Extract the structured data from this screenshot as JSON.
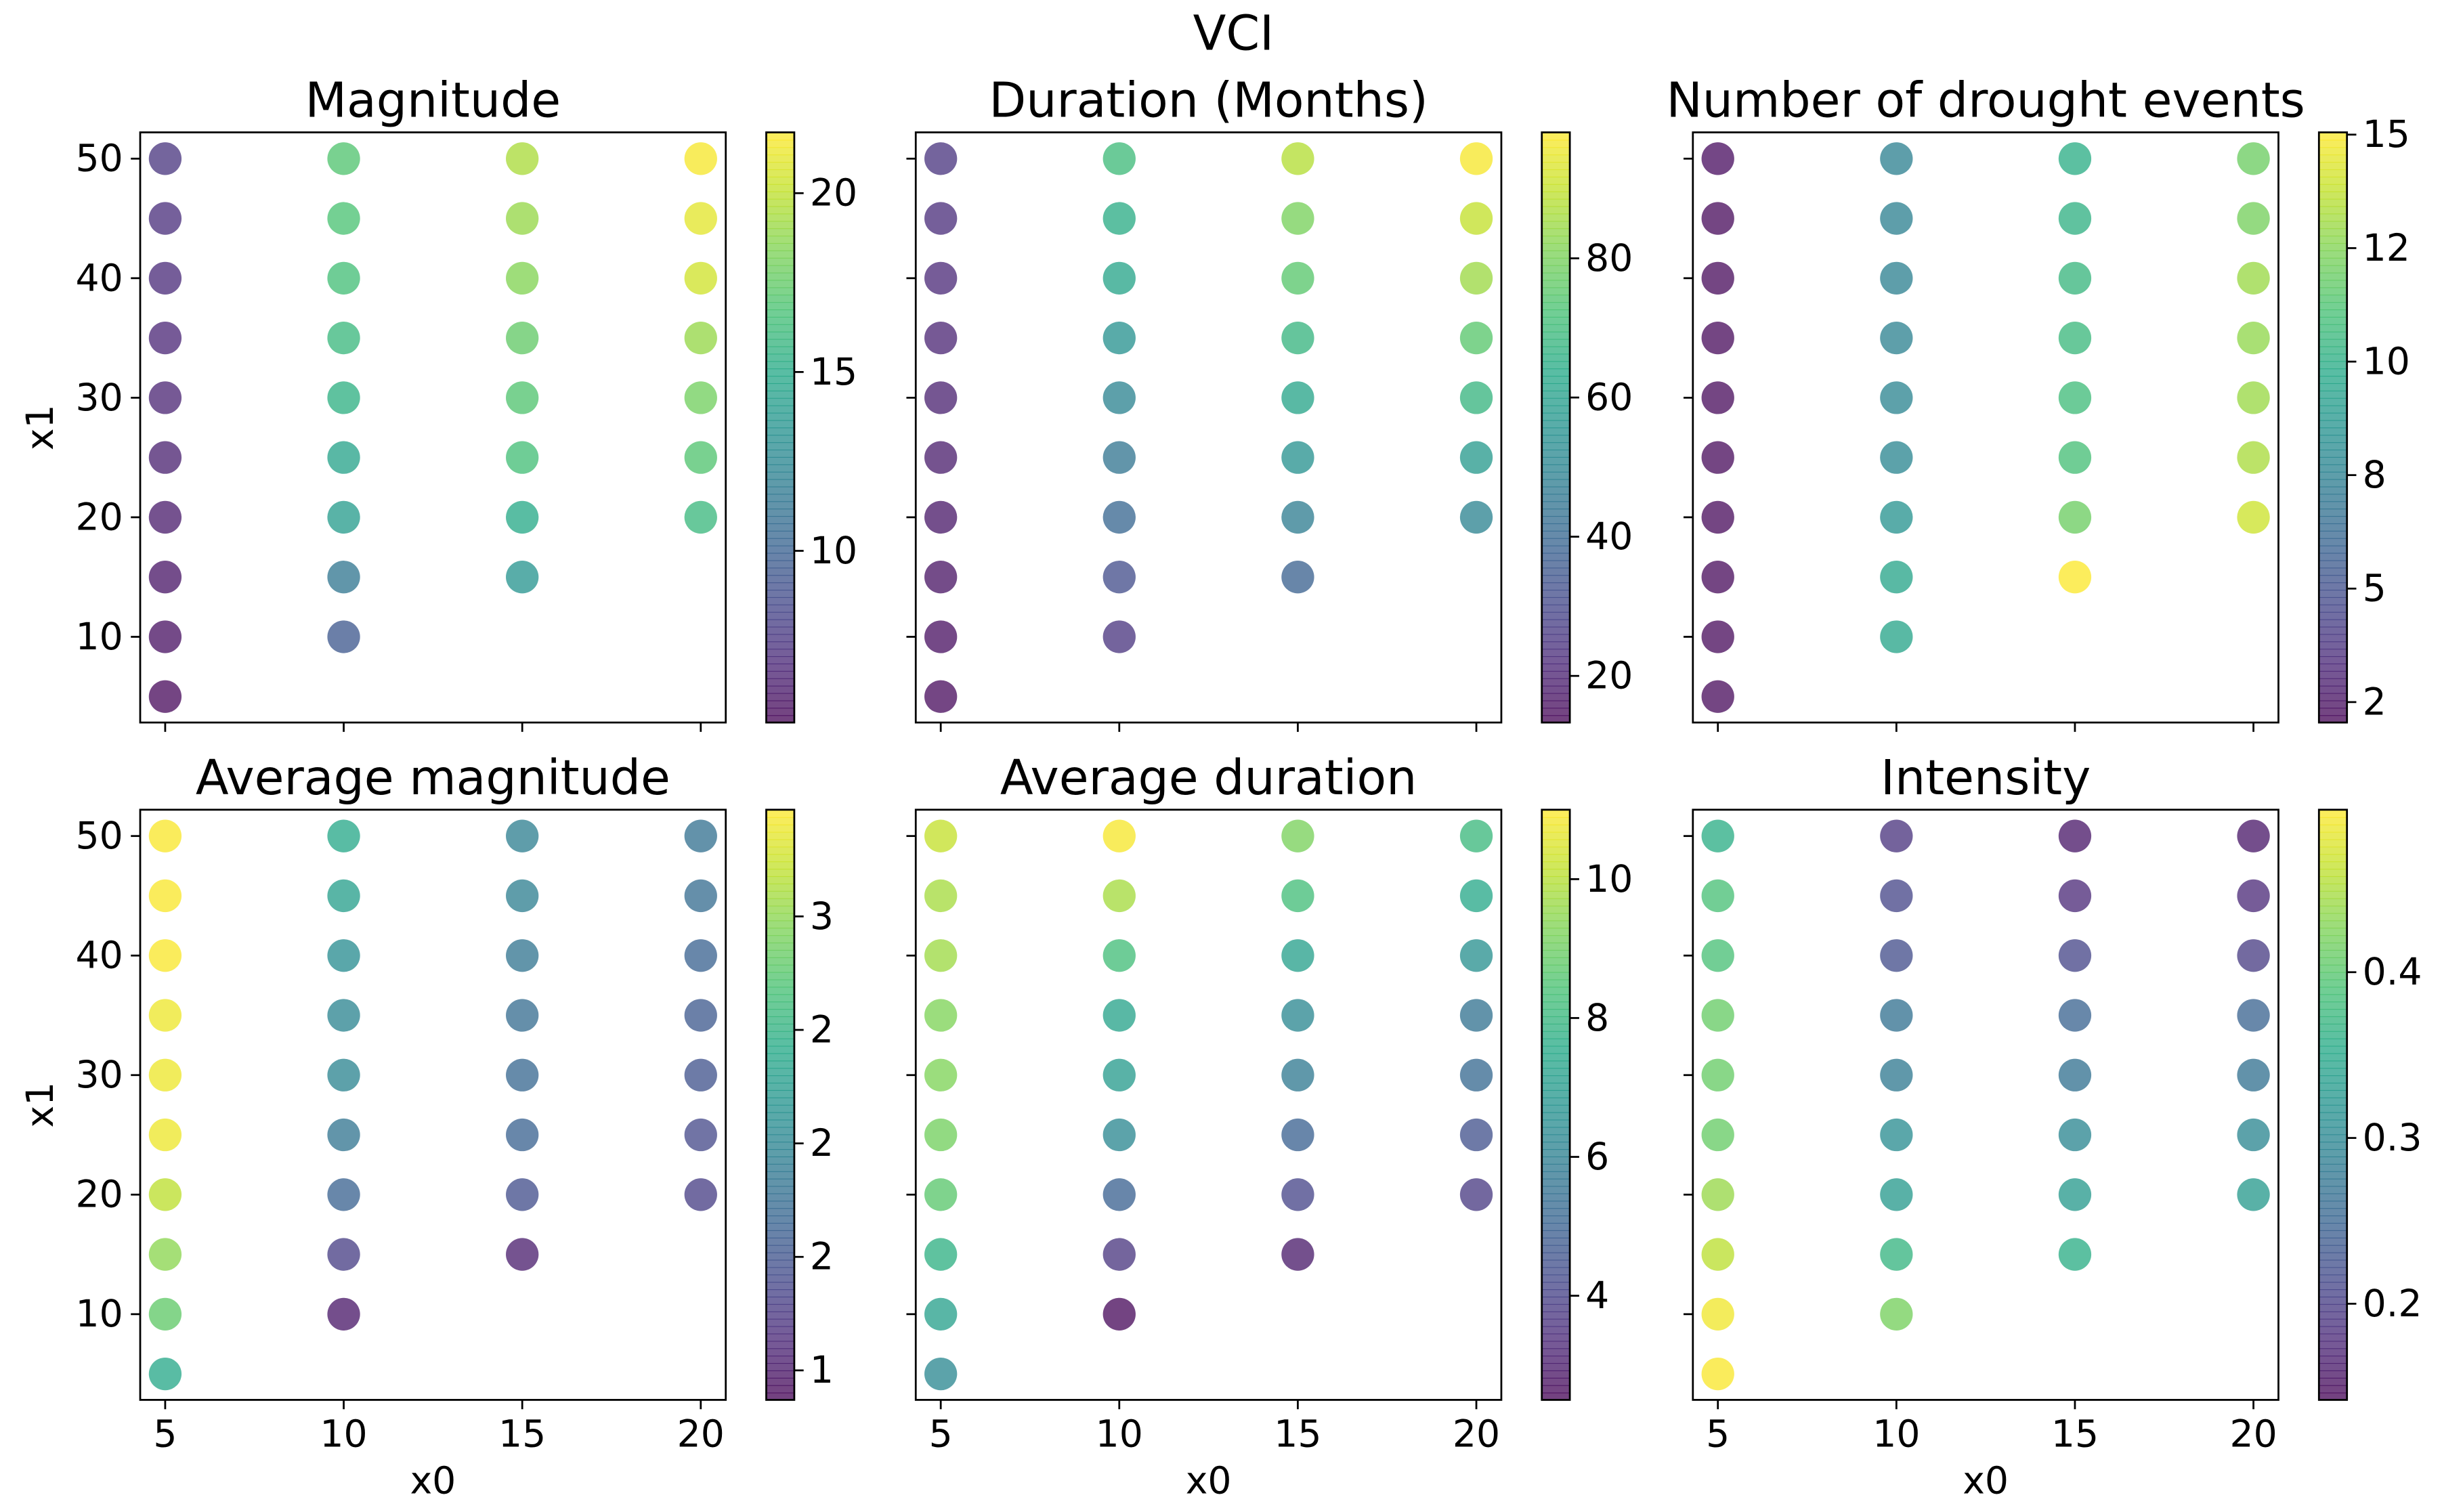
{
  "title": "VCI",
  "chart_data": [
    {
      "type": "scatter",
      "title": "Magnitude",
      "xlabel": "x0",
      "ylabel": "x1",
      "xtick_labels": false,
      "ytick_labels": true,
      "colormap": "viridis",
      "x": [
        5,
        5,
        5,
        5,
        5,
        5,
        5,
        5,
        5,
        5,
        10,
        10,
        10,
        10,
        10,
        10,
        10,
        10,
        10,
        15,
        15,
        15,
        15,
        15,
        15,
        15,
        15,
        20,
        20,
        20,
        20,
        20,
        20,
        20
      ],
      "y": [
        50,
        45,
        40,
        35,
        30,
        25,
        20,
        15,
        10,
        5,
        50,
        45,
        40,
        35,
        30,
        25,
        20,
        15,
        10,
        50,
        45,
        40,
        35,
        30,
        25,
        20,
        15,
        50,
        45,
        40,
        35,
        30,
        25,
        20
      ],
      "c": [
        7.5,
        7.2,
        7,
        6.8,
        6.7,
        6.5,
        6.3,
        6,
        5.8,
        5.5,
        17,
        16.8,
        16.5,
        16,
        15.5,
        14.5,
        14,
        11.5,
        9.5,
        19.5,
        19,
        18.5,
        17.5,
        17,
        16.5,
        15,
        13.5,
        21.5,
        21,
        20.5,
        19,
        18,
        17,
        16
      ],
      "xlim": [
        4.3,
        20.7
      ],
      "ylim": [
        2.83,
        52.2
      ],
      "xticks": [
        5,
        10,
        15,
        20
      ],
      "yticks": [
        10,
        20,
        30,
        40,
        50
      ],
      "clim": [
        5.2,
        21.7
      ],
      "cticks": [
        10,
        15,
        20
      ]
    },
    {
      "type": "scatter",
      "title": "Duration (Months)",
      "xlabel": "x0",
      "ylabel": "x1",
      "xtick_labels": false,
      "ytick_labels": false,
      "colormap": "viridis",
      "x": [
        5,
        5,
        5,
        5,
        5,
        5,
        5,
        5,
        5,
        5,
        10,
        10,
        10,
        10,
        10,
        10,
        10,
        10,
        10,
        15,
        15,
        15,
        15,
        15,
        15,
        15,
        15,
        20,
        20,
        20,
        20,
        20,
        20,
        20
      ],
      "y": [
        50,
        45,
        40,
        35,
        30,
        25,
        20,
        15,
        10,
        5,
        50,
        45,
        40,
        35,
        30,
        25,
        20,
        15,
        10,
        50,
        45,
        40,
        35,
        30,
        25,
        20,
        15,
        50,
        45,
        40,
        35,
        30,
        25,
        20
      ],
      "c": [
        25,
        23,
        22,
        21,
        20,
        19,
        18,
        17,
        16,
        15,
        70,
        65,
        62,
        55,
        50,
        45,
        40,
        32,
        25,
        88,
        80,
        75,
        68,
        62,
        55,
        48,
        38,
        97,
        90,
        85,
        75,
        68,
        58,
        50
      ],
      "xlim": [
        4.3,
        20.7
      ],
      "ylim": [
        2.83,
        52.2
      ],
      "xticks": [
        5,
        10,
        15,
        20
      ],
      "yticks": [
        10,
        20,
        30,
        40,
        50
      ],
      "clim": [
        13.3,
        98.1
      ],
      "cticks": [
        20,
        40,
        60,
        80
      ]
    },
    {
      "type": "scatter",
      "title": "Number of drought events",
      "xlabel": "x0",
      "ylabel": "x1",
      "xtick_labels": false,
      "ytick_labels": false,
      "colormap": "viridis",
      "x": [
        5,
        5,
        5,
        5,
        5,
        5,
        5,
        5,
        5,
        5,
        10,
        10,
        10,
        10,
        10,
        10,
        10,
        10,
        10,
        15,
        15,
        15,
        15,
        15,
        15,
        15,
        15,
        20,
        20,
        20,
        20,
        20,
        20,
        20
      ],
      "y": [
        50,
        45,
        40,
        35,
        30,
        25,
        20,
        15,
        10,
        5,
        50,
        45,
        40,
        35,
        30,
        25,
        20,
        15,
        10,
        50,
        45,
        40,
        35,
        30,
        25,
        20,
        15,
        50,
        45,
        40,
        35,
        30,
        25,
        20
      ],
      "c": [
        2.4,
        2.3,
        2.3,
        2.3,
        2.3,
        2.3,
        2.3,
        2.3,
        2.3,
        2.3,
        7.5,
        7.5,
        7.5,
        7.6,
        7.7,
        7.8,
        8.5,
        9.5,
        9.5,
        10,
        10.2,
        10.5,
        10.6,
        10.8,
        11,
        12,
        15,
        12,
        12.2,
        13,
        12.8,
        13,
        13.3,
        14
      ],
      "xlim": [
        4.3,
        20.7
      ],
      "ylim": [
        2.83,
        52.2
      ],
      "xticks": [
        5,
        10,
        15,
        20
      ],
      "yticks": [
        10,
        20,
        30,
        40,
        50
      ],
      "clim": [
        2.05,
        15.05
      ],
      "cticks": [
        {
          "value": 2.5,
          "label": "2"
        },
        5,
        {
          "value": 7.5,
          "label": "8"
        },
        10,
        {
          "value": 12.5,
          "label": "12"
        },
        15
      ]
    },
    {
      "type": "scatter",
      "title": "Average magnitude",
      "xlabel": "x0",
      "ylabel": "x1",
      "xtick_labels": true,
      "ytick_labels": true,
      "colormap": "viridis",
      "x": [
        5,
        5,
        5,
        5,
        5,
        5,
        5,
        5,
        5,
        5,
        10,
        10,
        10,
        10,
        10,
        10,
        10,
        10,
        10,
        15,
        15,
        15,
        15,
        15,
        15,
        15,
        15,
        20,
        20,
        20,
        20,
        20,
        20,
        20
      ],
      "y": [
        50,
        45,
        40,
        35,
        30,
        25,
        20,
        15,
        10,
        5,
        50,
        45,
        40,
        35,
        30,
        25,
        20,
        15,
        10,
        50,
        45,
        40,
        35,
        30,
        25,
        20,
        15,
        50,
        45,
        40,
        35,
        30,
        25,
        20
      ],
      "c": [
        3.45,
        3.45,
        3.45,
        3.4,
        3.4,
        3.4,
        3.2,
        3,
        2.8,
        2.4,
        2.4,
        2.3,
        2.1,
        2,
        2,
        1.85,
        1.65,
        1.3,
        1,
        1.95,
        1.95,
        1.85,
        1.75,
        1.7,
        1.65,
        1.45,
        1.05,
        1.8,
        1.75,
        1.65,
        1.55,
        1.5,
        1.4,
        1.3
      ],
      "xlim": [
        4.3,
        20.7
      ],
      "ylim": [
        2.83,
        52.2
      ],
      "xticks": [
        5,
        10,
        15,
        20
      ],
      "yticks": [
        10,
        20,
        30,
        40,
        50
      ],
      "clim": [
        0.87,
        3.47
      ],
      "cticks": [
        1,
        {
          "value": 1.5,
          "label": "2"
        },
        2,
        {
          "value": 2.5,
          "label": "2"
        },
        3
      ]
    },
    {
      "type": "scatter",
      "title": "Average duration",
      "xlabel": "x0",
      "ylabel": "x1",
      "xtick_labels": true,
      "ytick_labels": false,
      "colormap": "viridis",
      "x": [
        5,
        5,
        5,
        5,
        5,
        5,
        5,
        5,
        5,
        5,
        10,
        10,
        10,
        10,
        10,
        10,
        10,
        10,
        10,
        15,
        15,
        15,
        15,
        15,
        15,
        15,
        15,
        20,
        20,
        20,
        20,
        20,
        20,
        20
      ],
      "y": [
        50,
        45,
        40,
        35,
        30,
        25,
        20,
        15,
        10,
        5,
        50,
        45,
        40,
        35,
        30,
        25,
        20,
        15,
        10,
        50,
        45,
        40,
        35,
        30,
        25,
        20,
        15,
        50,
        45,
        40,
        35,
        30,
        25,
        20
      ],
      "c": [
        10.2,
        9.8,
        9.7,
        9.3,
        9.3,
        9.1,
        8.7,
        7.8,
        7.2,
        6.3,
        10.9,
        9.8,
        8.3,
        7.3,
        7,
        6.3,
        5,
        3.7,
        2.6,
        9.2,
        8.3,
        7.2,
        6.3,
        5.8,
        5,
        4.1,
        3,
        8.1,
        7.5,
        6.6,
        5.6,
        5.3,
        4.5,
        3.8
      ],
      "xlim": [
        4.3,
        20.7
      ],
      "ylim": [
        2.83,
        52.2
      ],
      "xticks": [
        5,
        10,
        15,
        20
      ],
      "yticks": [
        10,
        20,
        30,
        40,
        50
      ],
      "clim": [
        2.5,
        11
      ],
      "cticks": [
        4,
        6,
        8,
        10
      ]
    },
    {
      "type": "scatter",
      "title": "Intensity",
      "xlabel": "x0",
      "ylabel": "x1",
      "xtick_labels": true,
      "ytick_labels": false,
      "colormap": "viridis",
      "x": [
        5,
        5,
        5,
        5,
        5,
        5,
        5,
        5,
        5,
        5,
        10,
        10,
        10,
        10,
        10,
        10,
        10,
        10,
        10,
        15,
        15,
        15,
        15,
        15,
        15,
        15,
        15,
        20,
        20,
        20,
        20,
        20,
        20,
        20
      ],
      "y": [
        50,
        45,
        40,
        35,
        30,
        25,
        20,
        15,
        10,
        5,
        50,
        45,
        40,
        35,
        30,
        25,
        20,
        15,
        10,
        50,
        45,
        40,
        35,
        30,
        25,
        20,
        15,
        50,
        45,
        40,
        35,
        30,
        25,
        20
      ],
      "c": [
        0.36,
        0.39,
        0.39,
        0.41,
        0.41,
        0.41,
        0.44,
        0.46,
        0.49,
        0.495,
        0.19,
        0.21,
        0.22,
        0.27,
        0.28,
        0.31,
        0.33,
        0.37,
        0.42,
        0.16,
        0.18,
        0.21,
        0.25,
        0.27,
        0.3,
        0.33,
        0.36,
        0.16,
        0.18,
        0.2,
        0.25,
        0.27,
        0.3,
        0.33
      ],
      "xlim": [
        4.3,
        20.7
      ],
      "ylim": [
        2.83,
        52.2
      ],
      "xticks": [
        5,
        10,
        15,
        20
      ],
      "yticks": [
        10,
        20,
        30,
        40,
        50
      ],
      "clim": [
        0.142,
        0.498
      ],
      "cticks": [
        0.2,
        0.3,
        0.4
      ]
    }
  ]
}
